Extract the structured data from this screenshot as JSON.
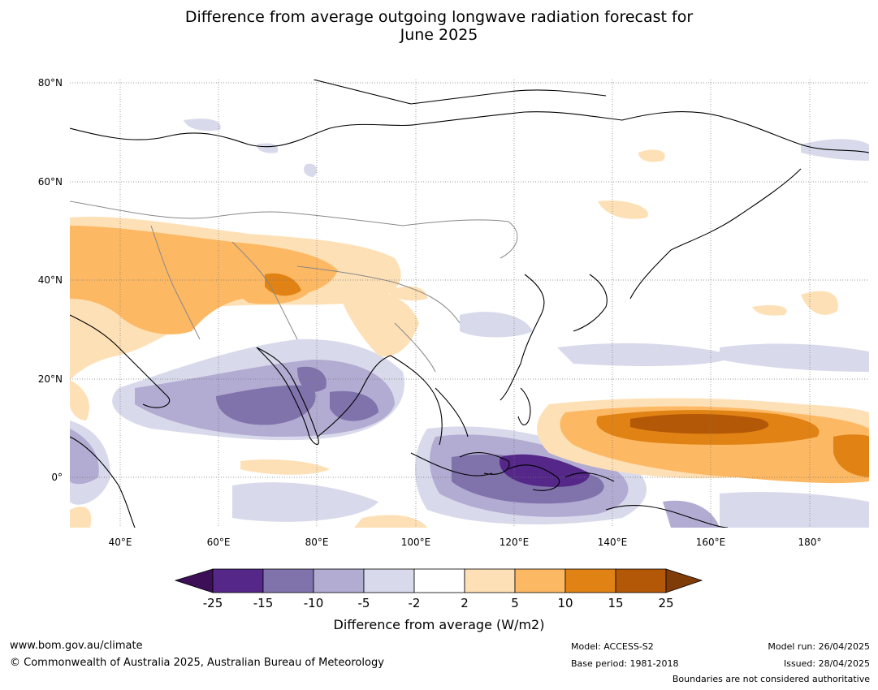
{
  "title_line1": "Difference from average outgoing longwave radiation forecast for",
  "title_line2": "June 2025",
  "lat_labels": [
    "80°N",
    "60°N",
    "40°N",
    "20°N",
    "0°"
  ],
  "lon_labels": [
    "40°E",
    "60°E",
    "80°E",
    "100°E",
    "120°E",
    "140°E",
    "160°E",
    "180°"
  ],
  "colorbar": {
    "ticks": [
      "-25",
      "-15",
      "-10",
      "-5",
      "-2",
      "2",
      "5",
      "10",
      "15",
      "25"
    ],
    "colors": [
      "#3c0f57",
      "#542788",
      "#8073ac",
      "#b2abd2",
      "#d8daeb",
      "#ffffff",
      "#fee0b6",
      "#fdb863",
      "#e08214",
      "#b35806",
      "#7f3b08"
    ],
    "label": "Difference from average (W/m2)"
  },
  "footer": {
    "url": "www.bom.gov.au/climate",
    "copyright": "© Commonwealth of Australia 2025, Australian Bureau of Meteorology",
    "model": "Model: ACCESS-S2",
    "base_period": "Base period: 1981-2018",
    "model_run": "Model run: 26/04/2025",
    "issued": "Issued: 28/04/2025",
    "disclaimer": "Boundaries are not considered authoritative"
  }
}
